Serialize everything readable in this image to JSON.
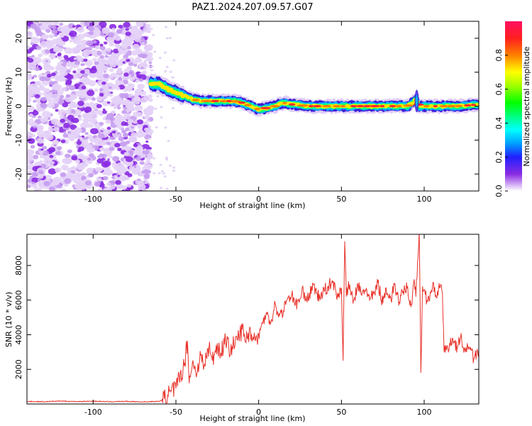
{
  "title": "PAZ1.2024.207.09.57.G07",
  "colors": {
    "snr_line": "#e8322a",
    "axes": "#000000",
    "background": "#ffffff"
  },
  "chart_data": [
    {
      "type": "heatmap",
      "name": "spectrogram",
      "xlabel": "Height of straight line (km)",
      "ylabel": "Frequency (Hz)",
      "xlim": [
        -140,
        133
      ],
      "ylim": [
        -25,
        25
      ],
      "xticks": [
        -100,
        -50,
        0,
        50,
        100
      ],
      "xtick_labels": [
        "-100",
        "-50",
        "0",
        "50",
        "100"
      ],
      "yticks": [
        -20,
        -10,
        0,
        10,
        20
      ],
      "ytick_labels": [
        "-20",
        "-10",
        "0",
        "10",
        "20"
      ],
      "colorbar": {
        "label": "Normalized spectral amplitude",
        "range": [
          0,
          1
        ],
        "ticks": [
          0.0,
          0.2,
          0.4,
          0.6,
          0.8
        ],
        "tick_labels": [
          "0.0",
          "0.2",
          "0.4",
          "0.6",
          "0.8"
        ],
        "colormap": "gist_rainbow_r"
      },
      "ridge": {
        "x": [
          -65,
          -60,
          -55,
          -50,
          -45,
          -40,
          -35,
          -30,
          -25,
          -20,
          -15,
          -10,
          -5,
          0,
          5,
          10,
          15,
          20,
          30,
          40,
          45,
          50,
          60,
          70,
          80,
          90,
          93,
          95,
          97,
          100,
          110,
          120,
          133
        ],
        "y": [
          6.5,
          6.5,
          5,
          4,
          3,
          2,
          1.5,
          1.5,
          1.5,
          1.5,
          1.5,
          1,
          0,
          -1,
          -0.5,
          0,
          1,
          0.5,
          0,
          0,
          0,
          0,
          0,
          0,
          0,
          0,
          1,
          2,
          0,
          0,
          0,
          0,
          0.5
        ],
        "noise_region_x": [
          -140,
          -65
        ],
        "gap_region_x": [
          -55,
          0
        ]
      }
    },
    {
      "type": "line",
      "name": "snr",
      "xlabel": "Height of straight line (km)",
      "ylabel": "SNR (10 * v/v)",
      "xlim": [
        -140,
        133
      ],
      "ylim": [
        0,
        9800
      ],
      "xticks": [
        -100,
        -50,
        0,
        50,
        100
      ],
      "xtick_labels": [
        "-100",
        "-50",
        "0",
        "50",
        "100"
      ],
      "yticks": [
        2000,
        4000,
        6000,
        8000
      ],
      "ytick_labels": [
        "2000",
        "4000",
        "6000",
        "8000"
      ],
      "series": [
        {
          "x": [
            -140,
            -130,
            -120,
            -110,
            -100,
            -90,
            -80,
            -70,
            -60,
            -57,
            -55,
            -53,
            -50,
            -48,
            -45,
            -43,
            -42,
            -40,
            -38,
            -35,
            -33,
            -30,
            -28,
            -25,
            -23,
            -20,
            -18,
            -15,
            -13,
            -10,
            -8,
            -5,
            -3,
            0,
            2,
            5,
            7,
            10,
            12,
            15,
            17,
            20,
            22,
            25,
            27,
            30,
            32,
            35,
            37,
            40,
            42,
            45,
            47,
            50,
            51,
            52,
            53,
            54,
            55,
            57,
            60,
            62,
            65,
            67,
            70,
            72,
            75,
            77,
            80,
            82,
            85,
            87,
            90,
            92,
            94,
            95,
            96,
            97,
            98,
            99,
            100,
            102,
            105,
            107,
            110,
            111,
            112,
            113,
            115,
            117,
            120,
            122,
            125,
            127,
            130,
            133
          ],
          "y": [
            150,
            130,
            170,
            140,
            160,
            130,
            150,
            120,
            150,
            300,
            500,
            700,
            900,
            1500,
            2200,
            3650,
            1200,
            2400,
            1800,
            2800,
            2200,
            3300,
            2500,
            3500,
            2900,
            3800,
            3200,
            3400,
            3700,
            4300,
            3600,
            4300,
            3700,
            4000,
            4700,
            5200,
            4600,
            5800,
            5000,
            5400,
            6000,
            6300,
            5700,
            6100,
            6500,
            6000,
            6800,
            6400,
            6100,
            6600,
            6800,
            7100,
            6200,
            6700,
            2500,
            9400,
            6200,
            6700,
            6900,
            5800,
            6900,
            6300,
            6700,
            6000,
            6400,
            7000,
            5800,
            6700,
            6000,
            6900,
            5900,
            6400,
            6800,
            5600,
            7200,
            6200,
            8200,
            10000,
            1800,
            6800,
            6600,
            5900,
            6800,
            6300,
            6900,
            6400,
            3000,
            3400,
            3100,
            3800,
            3300,
            3800,
            3000,
            3300,
            2600,
            3100
          ]
        }
      ]
    }
  ]
}
